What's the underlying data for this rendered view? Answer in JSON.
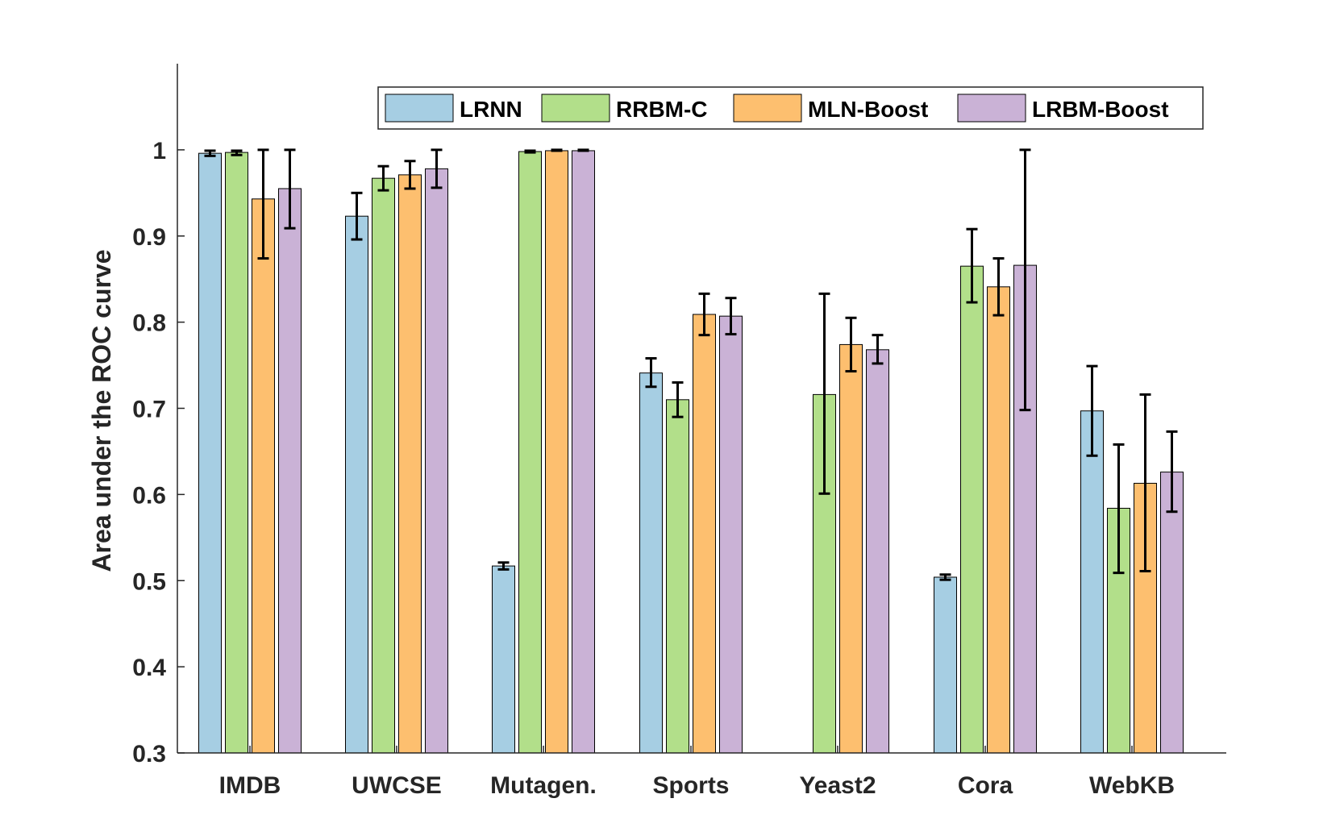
{
  "chart_data": {
    "type": "bar",
    "title": "",
    "xlabel": "",
    "ylabel": "Area under the ROC curve",
    "ylim": [
      0.3,
      1.1
    ],
    "yticks": [
      0.3,
      0.4,
      0.5,
      0.6,
      0.7,
      0.8,
      0.9,
      1
    ],
    "ytick_labels": [
      "0.3",
      "0.4",
      "0.5",
      "0.6",
      "0.7",
      "0.8",
      "0.9",
      "1"
    ],
    "categories": [
      "IMDB",
      "UWCSE",
      "Mutagen.",
      "Sports",
      "Yeast2",
      "Cora",
      "WebKB"
    ],
    "legend_position": "top-right",
    "series": [
      {
        "name": "LRNN",
        "color": "#a6cee3",
        "values": [
          0.996,
          0.923,
          0.517,
          0.741,
          null,
          0.504,
          0.697
        ],
        "error_low": [
          0.993,
          0.896,
          0.513,
          0.725,
          null,
          0.501,
          0.645
        ],
        "error_high": [
          0.999,
          0.95,
          0.521,
          0.758,
          null,
          0.507,
          0.749
        ]
      },
      {
        "name": "RRBM-C",
        "color": "#b2df8a",
        "values": [
          0.997,
          0.967,
          0.998,
          0.71,
          0.716,
          0.865,
          0.584
        ],
        "error_low": [
          0.994,
          0.953,
          0.997,
          0.69,
          0.601,
          0.823,
          0.509
        ],
        "error_high": [
          0.999,
          0.981,
          0.999,
          0.73,
          0.833,
          0.908,
          0.658
        ]
      },
      {
        "name": "MLN-Boost",
        "color": "#fdbf6f",
        "values": [
          0.943,
          0.971,
          0.999,
          0.809,
          0.774,
          0.841,
          0.613
        ],
        "error_low": [
          0.874,
          0.955,
          0.999,
          0.785,
          0.743,
          0.808,
          0.511
        ],
        "error_high": [
          1.0,
          0.987,
          1.0,
          0.833,
          0.805,
          0.874,
          0.716
        ]
      },
      {
        "name": "LRBM-Boost",
        "color": "#cab2d6",
        "values": [
          0.955,
          0.978,
          0.999,
          0.807,
          0.768,
          0.866,
          0.626
        ],
        "error_low": [
          0.909,
          0.956,
          0.999,
          0.786,
          0.752,
          0.698,
          0.58
        ],
        "error_high": [
          1.0,
          1.0,
          1.0,
          0.828,
          0.785,
          1.0,
          0.673
        ]
      }
    ]
  }
}
